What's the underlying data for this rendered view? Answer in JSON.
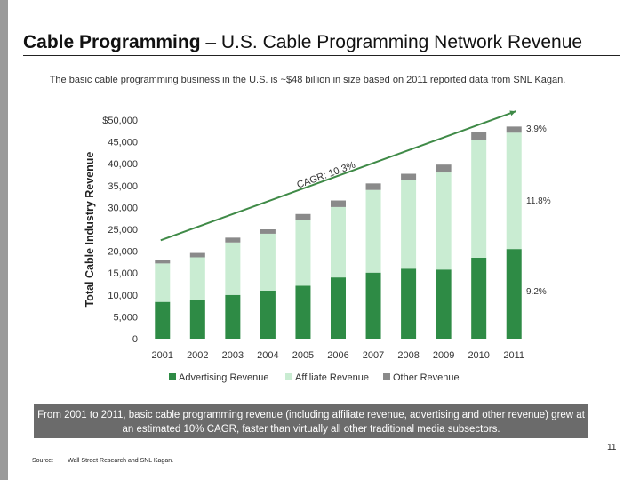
{
  "header": {
    "title_bold": "Cable Programming",
    "title_rest": " – U.S. Cable Programming Network Revenue",
    "subtitle": "The basic cable programming business in the U.S. is ~$48 billion in size based on 2011 reported data from SNL Kagan."
  },
  "chart_data": {
    "type": "bar",
    "stacked": true,
    "ylabel": "Total Cable Industry Revenue",
    "ylim": [
      0,
      50000
    ],
    "y_ticks": [
      "0",
      "5,000",
      "10,000",
      "15,000",
      "20,000",
      "25,000",
      "30,000",
      "35,000",
      "40,000",
      "45,000",
      "$50,000"
    ],
    "y_tick_values": [
      0,
      5000,
      10000,
      15000,
      20000,
      25000,
      30000,
      35000,
      40000,
      45000,
      50000
    ],
    "categories": [
      "2001",
      "2002",
      "2003",
      "2004",
      "2005",
      "2006",
      "2007",
      "2008",
      "2009",
      "2010",
      "2011"
    ],
    "series": [
      {
        "name": "Advertising Revenue",
        "color": "#2e8b45",
        "values": [
          8400,
          8900,
          10000,
          11000,
          12100,
          14000,
          15100,
          16000,
          15800,
          18500,
          20500
        ]
      },
      {
        "name": "Affiliate Revenue",
        "color": "#c9ecd2",
        "values": [
          8800,
          9700,
          12000,
          13000,
          15100,
          16100,
          18900,
          20200,
          22200,
          26900,
          26600
        ]
      },
      {
        "name": "Other Revenue",
        "color": "#8a8a8a",
        "values": [
          700,
          1000,
          1100,
          1000,
          1300,
          1500,
          1500,
          1500,
          1800,
          1800,
          1400
        ]
      }
    ],
    "trend": {
      "label": "CAGR: 10.3%",
      "color": "#3f8a47",
      "start_value": 22500,
      "end_value": 52000
    },
    "annotations": [
      "3.9%",
      "11.8%",
      "9.2%"
    ],
    "legend_position": "bottom",
    "grid": false
  },
  "footer": {
    "callout": "From 2001 to 2011, basic cable  programming revenue (including affiliate revenue, advertising and other revenue) grew at an estimated 10% CAGR, faster than virtually all other traditional media subsectors.",
    "page_number": "11",
    "source_label": "Source:",
    "source_text": "Wall Street Research and SNL Kagan."
  }
}
